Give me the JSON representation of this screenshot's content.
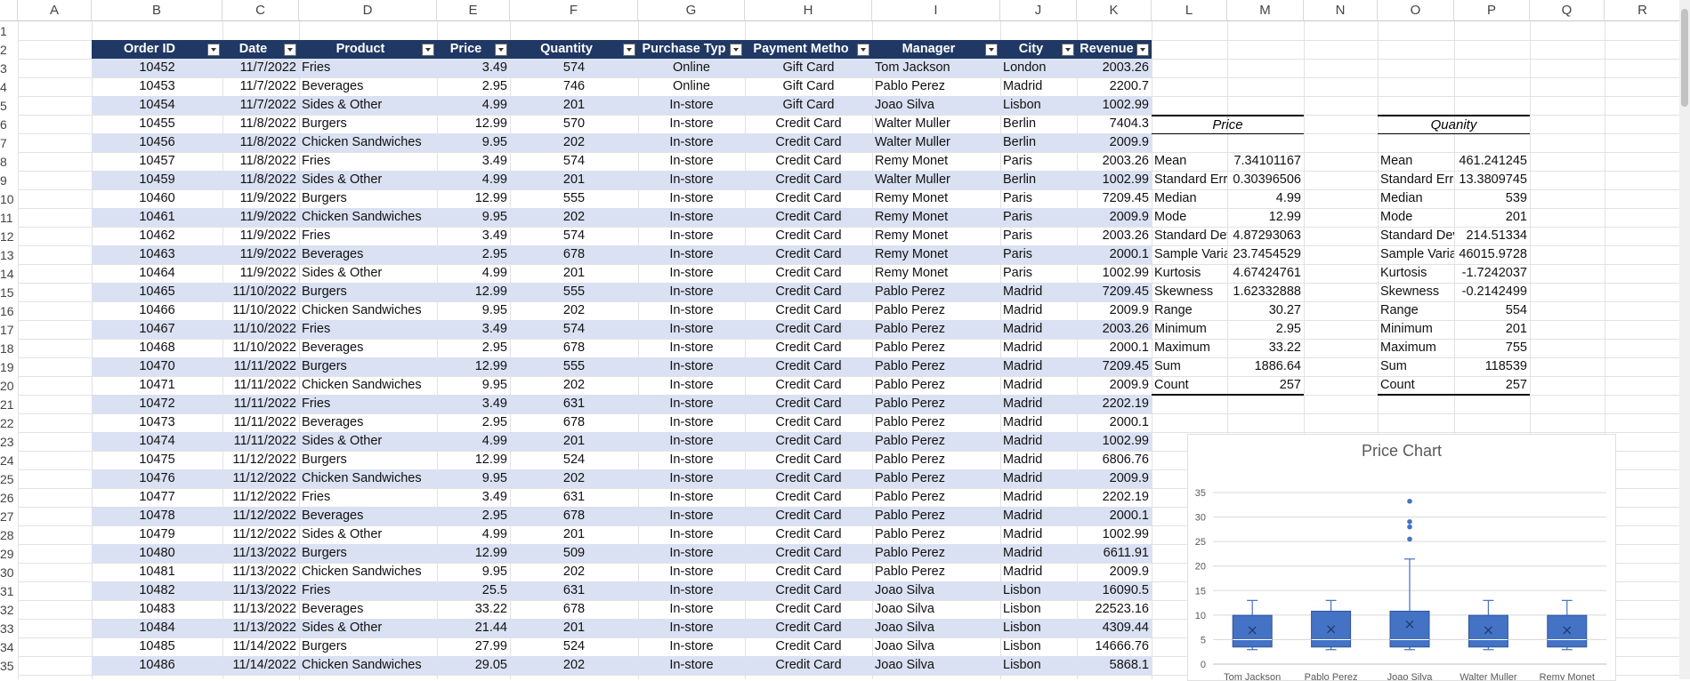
{
  "columns": [
    "A",
    "B",
    "C",
    "D",
    "E",
    "F",
    "G",
    "H",
    "I",
    "J",
    "K",
    "L",
    "M",
    "N",
    "O",
    "P",
    "Q",
    "R"
  ],
  "rows": [
    "1",
    "2",
    "3",
    "4",
    "5",
    "6",
    "7",
    "8",
    "9",
    "10",
    "11",
    "12",
    "13",
    "14",
    "15",
    "16",
    "17",
    "18",
    "19",
    "20",
    "21",
    "22",
    "23",
    "24",
    "25",
    "26",
    "27",
    "28",
    "29",
    "30",
    "31",
    "32",
    "33",
    "34",
    "35"
  ],
  "table": {
    "headers": [
      "Order ID",
      "Date",
      "Product",
      "Price",
      "Quantity",
      "Purchase Typ",
      "Payment Metho",
      "Manager",
      "City",
      "Revenue"
    ],
    "rows": [
      [
        "10452",
        "11/7/2022",
        "Fries",
        "3.49",
        "574",
        "Online",
        "Gift Card",
        "Tom Jackson",
        "London",
        "2003.26"
      ],
      [
        "10453",
        "11/7/2022",
        "Beverages",
        "2.95",
        "746",
        "Online",
        "Gift Card",
        "Pablo Perez",
        "Madrid",
        "2200.7"
      ],
      [
        "10454",
        "11/7/2022",
        "Sides & Other",
        "4.99",
        "201",
        "In-store",
        "Gift Card",
        "Joao Silva",
        "Lisbon",
        "1002.99"
      ],
      [
        "10455",
        "11/8/2022",
        "Burgers",
        "12.99",
        "570",
        "In-store",
        "Credit Card",
        "Walter Muller",
        "Berlin",
        "7404.3"
      ],
      [
        "10456",
        "11/8/2022",
        "Chicken Sandwiches",
        "9.95",
        "202",
        "In-store",
        "Credit Card",
        "Walter Muller",
        "Berlin",
        "2009.9"
      ],
      [
        "10457",
        "11/8/2022",
        "Fries",
        "3.49",
        "574",
        "In-store",
        "Credit Card",
        "Remy Monet",
        "Paris",
        "2003.26"
      ],
      [
        "10459",
        "11/8/2022",
        "Sides & Other",
        "4.99",
        "201",
        "In-store",
        "Credit Card",
        "Walter Muller",
        "Berlin",
        "1002.99"
      ],
      [
        "10460",
        "11/9/2022",
        "Burgers",
        "12.99",
        "555",
        "In-store",
        "Credit Card",
        "Remy Monet",
        "Paris",
        "7209.45"
      ],
      [
        "10461",
        "11/9/2022",
        "Chicken Sandwiches",
        "9.95",
        "202",
        "In-store",
        "Credit Card",
        "Remy Monet",
        "Paris",
        "2009.9"
      ],
      [
        "10462",
        "11/9/2022",
        "Fries",
        "3.49",
        "574",
        "In-store",
        "Credit Card",
        "Remy Monet",
        "Paris",
        "2003.26"
      ],
      [
        "10463",
        "11/9/2022",
        "Beverages",
        "2.95",
        "678",
        "In-store",
        "Credit Card",
        "Remy Monet",
        "Paris",
        "2000.1"
      ],
      [
        "10464",
        "11/9/2022",
        "Sides & Other",
        "4.99",
        "201",
        "In-store",
        "Credit Card",
        "Remy Monet",
        "Paris",
        "1002.99"
      ],
      [
        "10465",
        "11/10/2022",
        "Burgers",
        "12.99",
        "555",
        "In-store",
        "Credit Card",
        "Pablo Perez",
        "Madrid",
        "7209.45"
      ],
      [
        "10466",
        "11/10/2022",
        "Chicken Sandwiches",
        "9.95",
        "202",
        "In-store",
        "Credit Card",
        "Pablo Perez",
        "Madrid",
        "2009.9"
      ],
      [
        "10467",
        "11/10/2022",
        "Fries",
        "3.49",
        "574",
        "In-store",
        "Credit Card",
        "Pablo Perez",
        "Madrid",
        "2003.26"
      ],
      [
        "10468",
        "11/10/2022",
        "Beverages",
        "2.95",
        "678",
        "In-store",
        "Credit Card",
        "Pablo Perez",
        "Madrid",
        "2000.1"
      ],
      [
        "10470",
        "11/11/2022",
        "Burgers",
        "12.99",
        "555",
        "In-store",
        "Credit Card",
        "Pablo Perez",
        "Madrid",
        "7209.45"
      ],
      [
        "10471",
        "11/11/2022",
        "Chicken Sandwiches",
        "9.95",
        "202",
        "In-store",
        "Credit Card",
        "Pablo Perez",
        "Madrid",
        "2009.9"
      ],
      [
        "10472",
        "11/11/2022",
        "Fries",
        "3.49",
        "631",
        "In-store",
        "Credit Card",
        "Pablo Perez",
        "Madrid",
        "2202.19"
      ],
      [
        "10473",
        "11/11/2022",
        "Beverages",
        "2.95",
        "678",
        "In-store",
        "Credit Card",
        "Pablo Perez",
        "Madrid",
        "2000.1"
      ],
      [
        "10474",
        "11/11/2022",
        "Sides & Other",
        "4.99",
        "201",
        "In-store",
        "Credit Card",
        "Pablo Perez",
        "Madrid",
        "1002.99"
      ],
      [
        "10475",
        "11/12/2022",
        "Burgers",
        "12.99",
        "524",
        "In-store",
        "Credit Card",
        "Pablo Perez",
        "Madrid",
        "6806.76"
      ],
      [
        "10476",
        "11/12/2022",
        "Chicken Sandwiches",
        "9.95",
        "202",
        "In-store",
        "Credit Card",
        "Pablo Perez",
        "Madrid",
        "2009.9"
      ],
      [
        "10477",
        "11/12/2022",
        "Fries",
        "3.49",
        "631",
        "In-store",
        "Credit Card",
        "Pablo Perez",
        "Madrid",
        "2202.19"
      ],
      [
        "10478",
        "11/12/2022",
        "Beverages",
        "2.95",
        "678",
        "In-store",
        "Credit Card",
        "Pablo Perez",
        "Madrid",
        "2000.1"
      ],
      [
        "10479",
        "11/12/2022",
        "Sides & Other",
        "4.99",
        "201",
        "In-store",
        "Credit Card",
        "Pablo Perez",
        "Madrid",
        "1002.99"
      ],
      [
        "10480",
        "11/13/2022",
        "Burgers",
        "12.99",
        "509",
        "In-store",
        "Credit Card",
        "Pablo Perez",
        "Madrid",
        "6611.91"
      ],
      [
        "10481",
        "11/13/2022",
        "Chicken Sandwiches",
        "9.95",
        "202",
        "In-store",
        "Credit Card",
        "Pablo Perez",
        "Madrid",
        "2009.9"
      ],
      [
        "10482",
        "11/13/2022",
        "Fries",
        "25.5",
        "631",
        "In-store",
        "Credit Card",
        "Joao Silva",
        "Lisbon",
        "16090.5"
      ],
      [
        "10483",
        "11/13/2022",
        "Beverages",
        "33.22",
        "678",
        "In-store",
        "Credit Card",
        "Joao Silva",
        "Lisbon",
        "22523.16"
      ],
      [
        "10484",
        "11/13/2022",
        "Sides & Other",
        "21.44",
        "201",
        "In-store",
        "Credit Card",
        "Joao Silva",
        "Lisbon",
        "4309.44"
      ],
      [
        "10485",
        "11/14/2022",
        "Burgers",
        "27.99",
        "524",
        "In-store",
        "Credit Card",
        "Joao Silva",
        "Lisbon",
        "14666.76"
      ],
      [
        "10486",
        "11/14/2022",
        "Chicken Sandwiches",
        "29.05",
        "202",
        "In-store",
        "Credit Card",
        "Joao Silva",
        "Lisbon",
        "5868.1"
      ]
    ]
  },
  "price_stats": {
    "title": "Price",
    "rows": [
      [
        "Mean",
        "7.34101167"
      ],
      [
        "Standard Erro",
        "0.30396506"
      ],
      [
        "Median",
        "4.99"
      ],
      [
        "Mode",
        "12.99"
      ],
      [
        "Standard Dev",
        "4.87293063"
      ],
      [
        "Sample Varia",
        "23.7454529"
      ],
      [
        "Kurtosis",
        "4.67424761"
      ],
      [
        "Skewness",
        "1.62332888"
      ],
      [
        "Range",
        "30.27"
      ],
      [
        "Minimum",
        "2.95"
      ],
      [
        "Maximum",
        "33.22"
      ],
      [
        "Sum",
        "1886.64"
      ],
      [
        "Count",
        "257"
      ]
    ]
  },
  "quantity_stats": {
    "title": "Quanity",
    "rows": [
      [
        "Mean",
        "461.241245"
      ],
      [
        "Standard Erro",
        "13.3809745"
      ],
      [
        "Median",
        "539"
      ],
      [
        "Mode",
        "201"
      ],
      [
        "Standard Dev",
        "214.51334"
      ],
      [
        "Sample Varia",
        "46015.9728"
      ],
      [
        "Kurtosis",
        "-1.7242037"
      ],
      [
        "Skewness",
        "-0.2142499"
      ],
      [
        "Range",
        "554"
      ],
      [
        "Minimum",
        "201"
      ],
      [
        "Maximum",
        "755"
      ],
      [
        "Sum",
        "118539"
      ],
      [
        "Count",
        "257"
      ]
    ]
  },
  "chart_data": {
    "type": "box",
    "title": "Price Chart",
    "categories": [
      "Tom Jackson",
      "Pablo Perez",
      "Joao Silva",
      "Walter Muller",
      "Remy Monet"
    ],
    "ylim": [
      0,
      35
    ],
    "yticks": [
      "0",
      "5",
      "10",
      "15",
      "20",
      "25",
      "30",
      "35"
    ],
    "boxes": [
      {
        "min": 2.95,
        "q1": 3.49,
        "median": 4.99,
        "q3": 9.95,
        "max": 12.99,
        "mean": 6.9,
        "outliers": []
      },
      {
        "min": 2.95,
        "q1": 3.49,
        "median": 4.99,
        "q3": 10.8,
        "max": 12.99,
        "mean": 7.1,
        "outliers": []
      },
      {
        "min": 2.95,
        "q1": 3.49,
        "median": 4.99,
        "q3": 10.8,
        "max": 21.44,
        "mean": 8.1,
        "outliers": [
          25.5,
          27.99,
          29.05,
          33.22
        ]
      },
      {
        "min": 2.95,
        "q1": 3.49,
        "median": 4.99,
        "q3": 9.95,
        "max": 12.99,
        "mean": 6.9,
        "outliers": []
      },
      {
        "min": 2.95,
        "q1": 3.49,
        "median": 4.99,
        "q3": 9.95,
        "max": 12.99,
        "mean": 6.9,
        "outliers": []
      }
    ],
    "color": "#4472c4",
    "grid": true,
    "legend": "none"
  },
  "colors": {
    "header_fill": "#203864",
    "band_fill": "#d9e1f2",
    "box_fill": "#4472c4",
    "box_edge": "#2f5597"
  }
}
